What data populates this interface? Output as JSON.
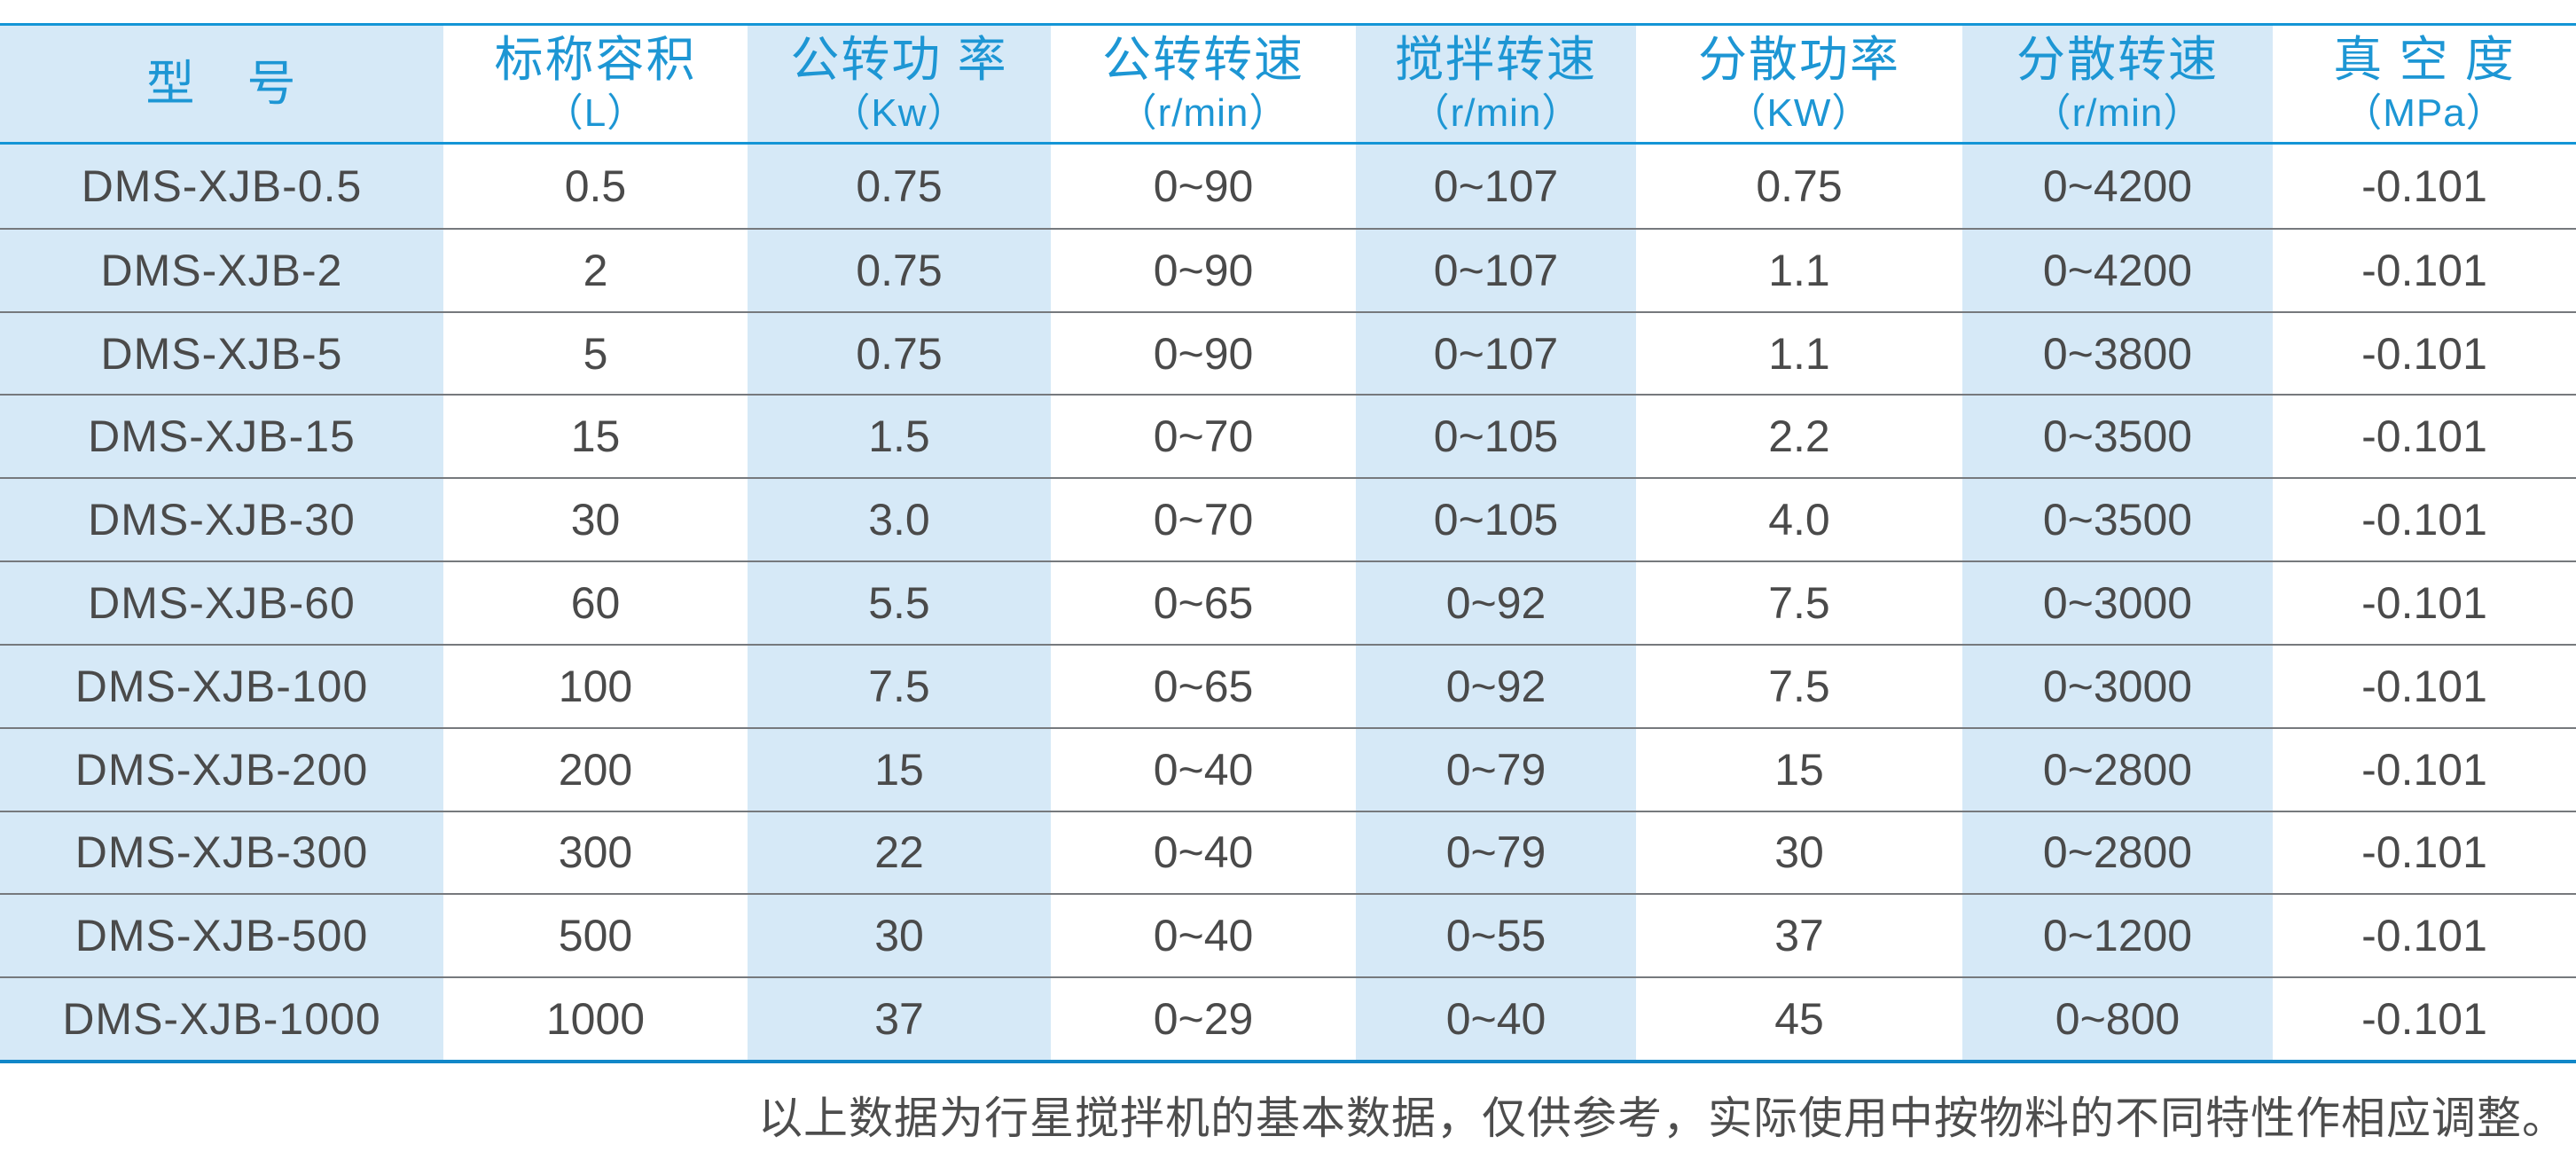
{
  "colors": {
    "accent_line": "#1495d6",
    "bottom_line": "#1187c8",
    "header_text": "#1d96d4",
    "cell_blue": "#d6e9f7",
    "data_text": "#4a4a4a",
    "separator": "#76797d"
  },
  "table": {
    "columns": [
      {
        "title": "型　号",
        "unit": ""
      },
      {
        "title": "标称容积",
        "unit": "（L）"
      },
      {
        "title": "公转功 率",
        "unit": "（Kw）"
      },
      {
        "title": "公转转速",
        "unit": "（r/min）"
      },
      {
        "title": "搅拌转速",
        "unit": "（r/min）"
      },
      {
        "title": "分散功率",
        "unit": "（KW）"
      },
      {
        "title": "分散转速",
        "unit": "（r/min）"
      },
      {
        "title": "真 空 度",
        "unit": "（MPa）"
      }
    ],
    "rows": [
      [
        "DMS-XJB-0.5",
        "0.5",
        "0.75",
        "0~90",
        "0~107",
        "0.75",
        "0~4200",
        "-0.101"
      ],
      [
        "DMS-XJB-2",
        "2",
        "0.75",
        "0~90",
        "0~107",
        "1.1",
        "0~4200",
        "-0.101"
      ],
      [
        "DMS-XJB-5",
        "5",
        "0.75",
        "0~90",
        "0~107",
        "1.1",
        "0~3800",
        "-0.101"
      ],
      [
        "DMS-XJB-15",
        "15",
        "1.5",
        "0~70",
        "0~105",
        "2.2",
        "0~3500",
        "-0.101"
      ],
      [
        "DMS-XJB-30",
        "30",
        "3.0",
        "0~70",
        "0~105",
        "4.0",
        "0~3500",
        "-0.101"
      ],
      [
        "DMS-XJB-60",
        "60",
        "5.5",
        "0~65",
        "0~92",
        "7.5",
        "0~3000",
        "-0.101"
      ],
      [
        "DMS-XJB-100",
        "100",
        "7.5",
        "0~65",
        "0~92",
        "7.5",
        "0~3000",
        "-0.101"
      ],
      [
        "DMS-XJB-200",
        "200",
        "15",
        "0~40",
        "0~79",
        "15",
        "0~2800",
        "-0.101"
      ],
      [
        "DMS-XJB-300",
        "300",
        "22",
        "0~40",
        "0~79",
        "30",
        "0~2800",
        "-0.101"
      ],
      [
        "DMS-XJB-500",
        "500",
        "30",
        "0~40",
        "0~55",
        "37",
        "0~1200",
        "-0.101"
      ],
      [
        "DMS-XJB-1000",
        "1000",
        "37",
        "0~29",
        "0~40",
        "45",
        "0~800",
        "-0.101"
      ]
    ]
  },
  "footer": {
    "note": "以上数据为行星搅拌机的基本数据，仅供参考，实际使用中按物料的不同特性作相应调整。"
  }
}
